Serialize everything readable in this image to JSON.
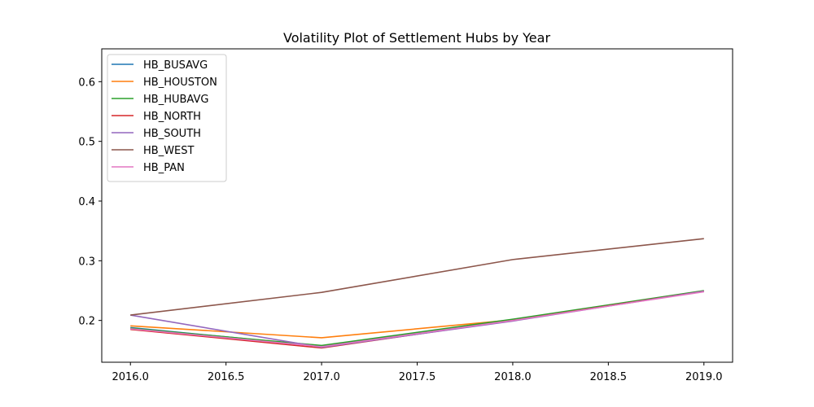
{
  "chart_data": {
    "type": "line",
    "title": "Volatility Plot of Settlement Hubs by Year",
    "xlabel": "",
    "ylabel": "",
    "xlim": [
      2015.85,
      2019.15
    ],
    "ylim": [
      0.13,
      0.655
    ],
    "x_ticks": [
      2016.0,
      2016.5,
      2017.0,
      2017.5,
      2018.0,
      2018.5,
      2019.0
    ],
    "x_tick_labels": [
      "2016.0",
      "2016.5",
      "2017.0",
      "2017.5",
      "2018.0",
      "2018.5",
      "2019.0"
    ],
    "y_ticks": [
      0.2,
      0.3,
      0.4,
      0.5,
      0.6
    ],
    "y_tick_labels": [
      "0.2",
      "0.3",
      "0.4",
      "0.5",
      "0.6"
    ],
    "grid": false,
    "legend_position": "top-left",
    "x": [
      2016,
      2017,
      2018,
      2019
    ],
    "series": [
      {
        "name": "HB_BUSAVG",
        "color": "#1f77b4",
        "values": [
          0.188,
          0.157,
          0.201,
          0.249
        ]
      },
      {
        "name": "HB_HOUSTON",
        "color": "#ff7f0e",
        "values": [
          0.191,
          0.171,
          0.201,
          0.249
        ]
      },
      {
        "name": "HB_HUBAVG",
        "color": "#2ca02c",
        "values": [
          0.187,
          0.158,
          0.202,
          0.25
        ]
      },
      {
        "name": "HB_NORTH",
        "color": "#d62728",
        "values": [
          0.185,
          0.154,
          0.2,
          0.249
        ]
      },
      {
        "name": "HB_SOUTH",
        "color": "#9467bd",
        "values": [
          0.209,
          0.155,
          0.199,
          0.249
        ]
      },
      {
        "name": "HB_WEST",
        "color": "#8c564b",
        "values": [
          0.209,
          0.247,
          0.302,
          0.337
        ]
      },
      {
        "name": "HB_PAN",
        "color": "#e377c2",
        "values": [
          0.186,
          0.156,
          0.2,
          0.248
        ]
      }
    ]
  }
}
